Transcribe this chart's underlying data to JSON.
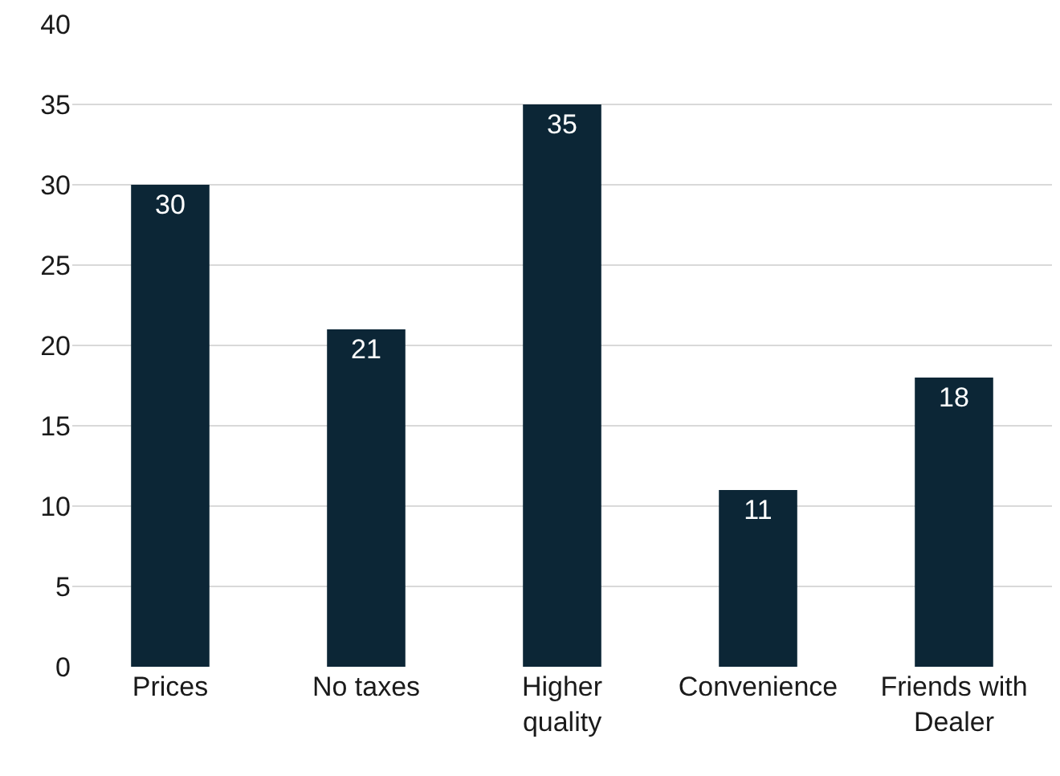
{
  "chart_data": {
    "type": "bar",
    "categories": [
      "Prices",
      "No taxes",
      "Higher quality",
      "Convenience",
      "Friends with Dealer"
    ],
    "values": [
      30,
      21,
      35,
      11,
      18
    ],
    "color": "#0c2636",
    "ylim": [
      0,
      40
    ],
    "yticks": [
      0,
      5,
      10,
      15,
      20,
      25,
      30,
      35,
      40
    ],
    "grid": "y",
    "data_labels": true
  }
}
